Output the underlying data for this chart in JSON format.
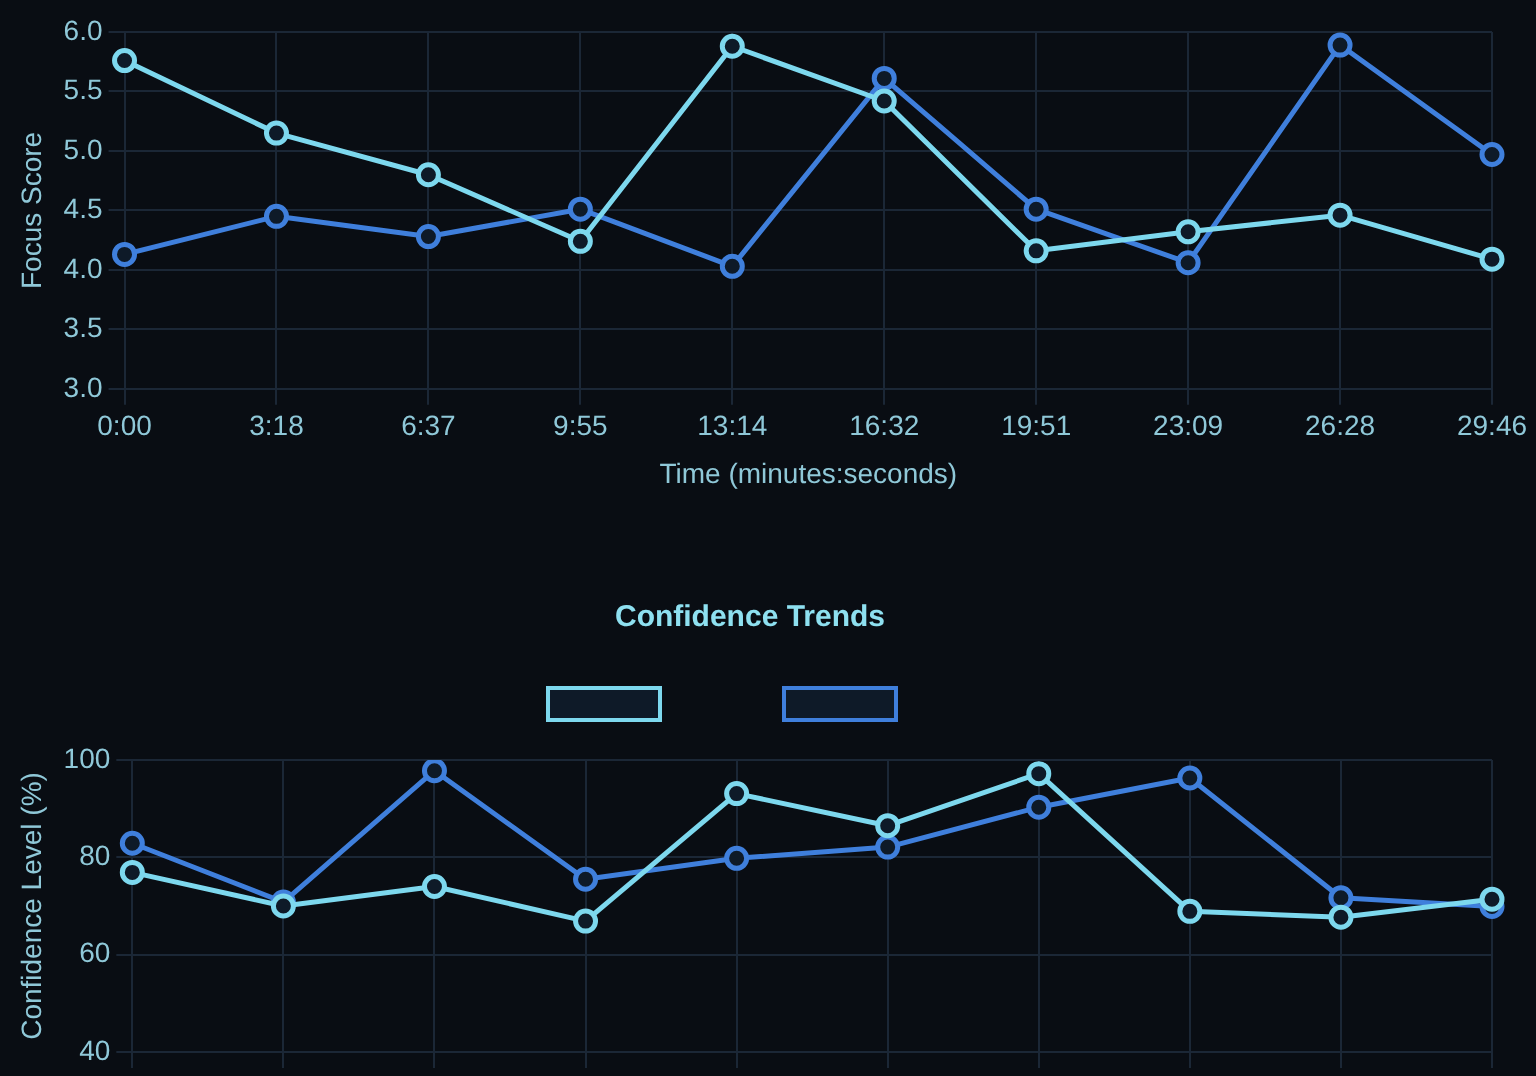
{
  "chart_data": [
    {
      "type": "line",
      "ylabel": "Focus Score",
      "xlabel": "Time (minutes:seconds)",
      "categories": [
        "0:00",
        "3:18",
        "6:37",
        "9:55",
        "13:14",
        "16:32",
        "19:51",
        "23:09",
        "26:28",
        "29:46"
      ],
      "series": [
        {
          "color": "#7dd8ee",
          "values": [
            5.76,
            5.15,
            4.8,
            4.24,
            5.88,
            5.42,
            4.16,
            4.32,
            4.46,
            4.09
          ]
        },
        {
          "color": "#3f7fdc",
          "values": [
            4.13,
            4.45,
            4.28,
            4.51,
            4.03,
            5.61,
            4.51,
            4.06,
            5.89,
            4.97
          ]
        }
      ],
      "ylim": [
        3,
        6
      ],
      "yticks": [
        {
          "value": 3,
          "label": "3.0"
        },
        3.5,
        {
          "value": 4,
          "label": "4.0"
        },
        4.5,
        {
          "value": 5,
          "label": "5.0"
        },
        5.5,
        {
          "value": 6,
          "label": "6.0"
        }
      ],
      "grid": true,
      "legend": false,
      "marker": "circle",
      "line_style": "solid"
    },
    {
      "type": "line",
      "title": "Confidence Trends",
      "ylabel": "Confidence Level (%)",
      "categories": [
        null,
        null,
        null,
        null,
        null,
        null,
        null,
        null,
        null,
        null
      ],
      "series": [
        {
          "color": "#7dd8ee",
          "values": [
            76.9,
            70,
            74,
            66.9,
            93.1,
            86.5,
            97.2,
            68.9,
            67.7,
            71.4
          ]
        },
        {
          "color": "#3f7fdc",
          "values": [
            82.9,
            70.8,
            97.8,
            75.5,
            79.8,
            82.1,
            90.3,
            96.3,
            71.7,
            69.9
          ]
        }
      ],
      "ylim": [
        40,
        100
      ],
      "yticks": [
        40,
        60,
        80,
        100
      ],
      "grid": true,
      "marker": "circle",
      "line_style": "solid",
      "tick_labels": "y"
    }
  ]
}
